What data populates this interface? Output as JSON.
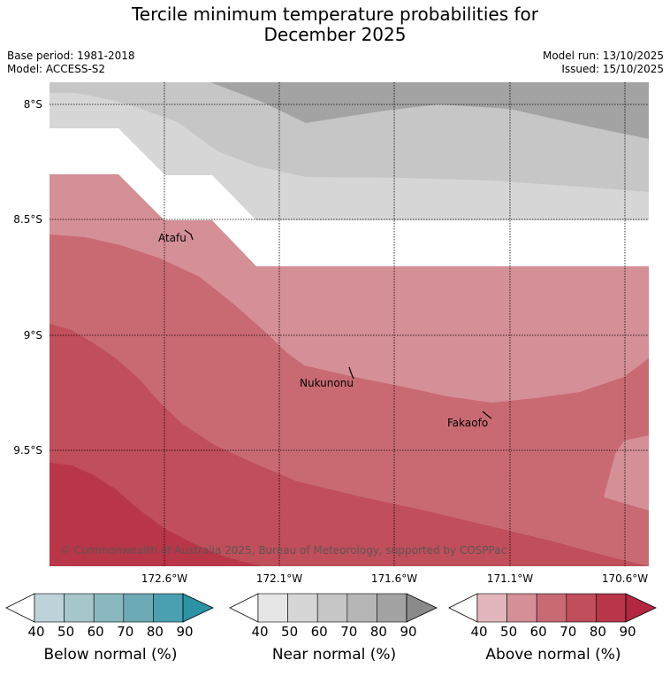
{
  "header": {
    "title_line1": "Tercile minimum temperature probabilities for",
    "title_line2": "December 2025",
    "base_period": "Base period: 1981-2018",
    "model": "Model: ACCESS-S2",
    "model_run": "Model run: 13/10/2025",
    "issued": "Issued: 15/10/2025"
  },
  "map": {
    "lat_labels": [
      "8°S",
      "8.5°S",
      "9°S",
      "9.5°S"
    ],
    "lon_labels": [
      "172.6°W",
      "172.1°W",
      "171.6°W",
      "171.1°W",
      "170.6°W"
    ],
    "places": [
      "Atafu",
      "Nukunonu",
      "Fakaofo"
    ],
    "copyright": "© Commonwealth of Australia 2025, Bureau of Meteorology, supported by COSPPac"
  },
  "legend": {
    "ticks": [
      "40",
      "50",
      "60",
      "70",
      "80",
      "90"
    ],
    "below": {
      "label": "Below normal (%)",
      "colors": [
        "#ffffff",
        "#bcd3d9",
        "#a6c6cc",
        "#8ab8c0",
        "#6eaab5",
        "#4aa0b0",
        "#2b93a5"
      ]
    },
    "near": {
      "label": "Near normal (%)",
      "colors": [
        "#ffffff",
        "#e6e6e6",
        "#d6d6d6",
        "#c6c6c6",
        "#b6b6b6",
        "#a3a3a3",
        "#8a8a8a"
      ]
    },
    "above": {
      "label": "Above normal (%)",
      "colors": [
        "#ffffff",
        "#e3b6bd",
        "#d58f97",
        "#c96a73",
        "#c04e5b",
        "#b93649",
        "#b32741"
      ]
    }
  }
}
